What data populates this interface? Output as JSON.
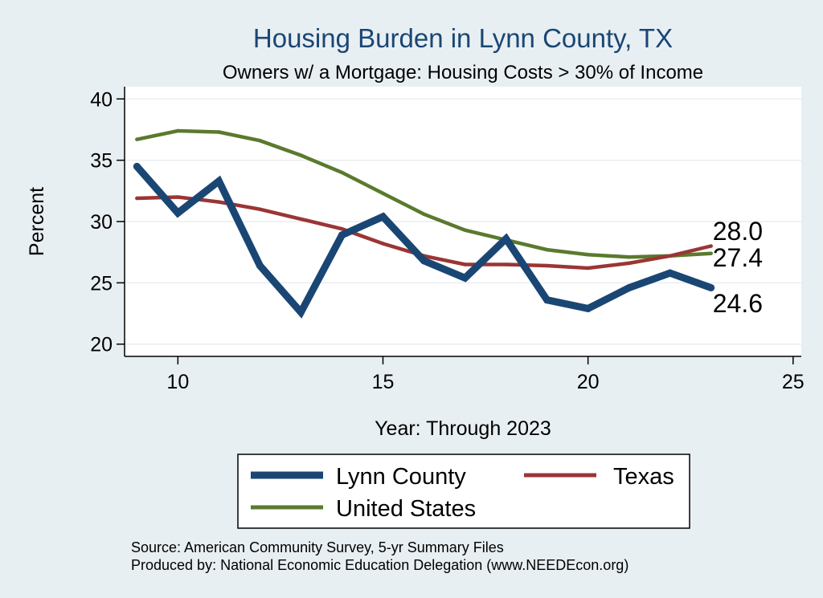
{
  "chart_data": {
    "type": "line",
    "title": "Housing Burden in Lynn County, TX",
    "subtitle": "Owners w/ a Mortgage: Housing Costs > 30% of Income",
    "xlabel": "Year: Through 2023",
    "ylabel": "Percent",
    "xlim": [
      8.7,
      25.2
    ],
    "ylim": [
      19,
      41
    ],
    "xticks": [
      10,
      15,
      20,
      25
    ],
    "yticks": [
      20,
      25,
      30,
      35,
      40
    ],
    "grid": true,
    "legend_position": "bottom",
    "series": [
      {
        "name": "Lynn County",
        "color": "#1a4674",
        "x": [
          9,
          10,
          11,
          12,
          13,
          14,
          15,
          16,
          17,
          18,
          19,
          20,
          21,
          22,
          23
        ],
        "values": [
          34.5,
          30.7,
          33.3,
          26.4,
          22.6,
          28.9,
          30.4,
          26.8,
          25.4,
          28.6,
          23.6,
          22.9,
          24.6,
          25.8,
          24.6
        ],
        "end_label": "24.6"
      },
      {
        "name": "Texas",
        "color": "#9b3535",
        "x": [
          9,
          10,
          11,
          12,
          13,
          14,
          15,
          16,
          17,
          18,
          19,
          20,
          21,
          22,
          23
        ],
        "values": [
          31.9,
          32.0,
          31.6,
          31.0,
          30.2,
          29.4,
          28.2,
          27.2,
          26.5,
          26.5,
          26.4,
          26.2,
          26.6,
          27.2,
          28.0
        ],
        "end_label": "28.0"
      },
      {
        "name": "United States",
        "color": "#5a7a2e",
        "x": [
          9,
          10,
          11,
          12,
          13,
          14,
          15,
          16,
          17,
          18,
          19,
          20,
          21,
          22,
          23
        ],
        "values": [
          36.7,
          37.4,
          37.3,
          36.6,
          35.4,
          34.0,
          32.3,
          30.6,
          29.3,
          28.5,
          27.7,
          27.3,
          27.1,
          27.2,
          27.4
        ],
        "end_label": "27.4"
      }
    ],
    "notes": [
      "Source: American Community Survey, 5-yr Summary Files",
      "Produced by: National Economic Education Delegation (www.NEEDEcon.org)"
    ]
  }
}
